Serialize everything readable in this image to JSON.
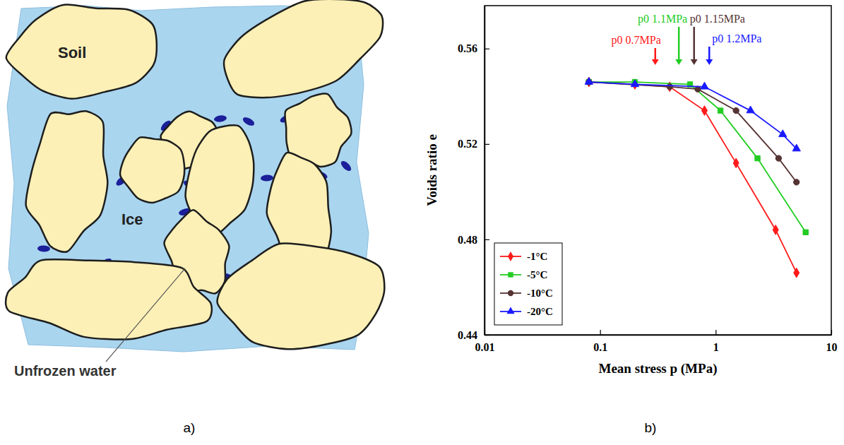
{
  "panels": [
    "a)",
    "b)"
  ],
  "diagram": {
    "labels": {
      "soil": "Soil",
      "ice": "Ice",
      "unfrozen_water": "Unfrozen water"
    }
  },
  "chart_data": {
    "type": "line",
    "x_label": "Mean stress p (MPa)",
    "y_label": "Voids ratio e",
    "log": "x",
    "xlim": [
      0.01,
      10
    ],
    "xticks": [
      0.01,
      0.1,
      1,
      10
    ],
    "ylim": [
      0.44,
      0.578
    ],
    "yticks": [
      0.44,
      0.48,
      0.52,
      0.56
    ],
    "legend": "lower left",
    "series": [
      {
        "name": "-1°C",
        "color": "#ff1a1a",
        "marker": "diamond",
        "x": [
          0.08,
          0.2,
          0.4,
          0.8,
          1.5,
          3.3,
          5
        ],
        "values": [
          0.546,
          0.545,
          0.544,
          0.534,
          0.512,
          0.484,
          0.466
        ]
      },
      {
        "name": "-5°C",
        "color": "#22cc22",
        "marker": "square",
        "x": [
          0.08,
          0.2,
          0.6,
          1.1,
          2.3,
          6
        ],
        "values": [
          0.546,
          0.546,
          0.545,
          0.534,
          0.514,
          0.483
        ]
      },
      {
        "name": "-10°C",
        "color": "#553333",
        "marker": "circle",
        "x": [
          0.08,
          0.4,
          0.7,
          1.5,
          3.5,
          5
        ],
        "values": [
          0.546,
          0.544,
          0.543,
          0.534,
          0.514,
          0.504
        ]
      },
      {
        "name": "-20°C",
        "color": "#1a1aff",
        "marker": "triangle",
        "x": [
          0.08,
          0.2,
          0.8,
          2,
          3.8,
          5
        ],
        "values": [
          0.546,
          0.545,
          0.544,
          0.534,
          0.524,
          0.518
        ]
      }
    ],
    "annotations": [
      {
        "text": "p0 0.7MPa",
        "x": 0.3,
        "color": "#ff1a1a"
      },
      {
        "text": "p0 1.1MPa",
        "x": 0.48,
        "color": "#22cc22"
      },
      {
        "text": "p0 1.15MPa",
        "x": 0.65,
        "color": "#553333"
      },
      {
        "text": "p0 1.2MPa",
        "x": 0.88,
        "color": "#1a1aff"
      }
    ]
  }
}
